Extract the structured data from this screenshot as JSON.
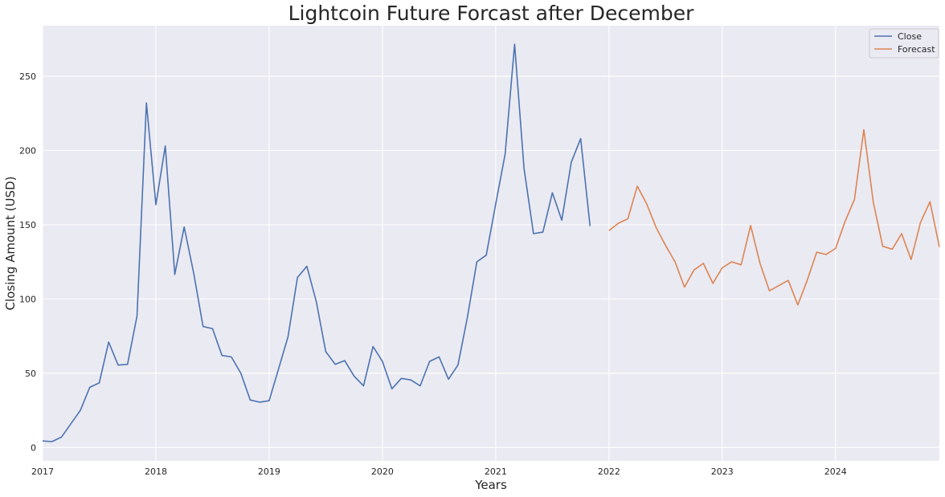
{
  "chart_data": {
    "type": "line",
    "title": "Lightcoin Future Forcast after December",
    "xlabel": "Years",
    "ylabel": "Closing Amount (USD)",
    "x_ticks": [
      "2017",
      "2018",
      "2019",
      "2020",
      "2021",
      "2022",
      "2023",
      "2024"
    ],
    "y_ticks": [
      "0",
      "50",
      "100",
      "150",
      "200",
      "250"
    ],
    "xlim": [
      "2017-01",
      "2024-12"
    ],
    "ylim": [
      -9,
      284
    ],
    "grid": true,
    "legend_position": "top-right",
    "background_color": "#eaeaf2",
    "series": [
      {
        "name": "Close",
        "color": "#4c72b0",
        "start": "2017-01",
        "values": [
          4.4,
          4.0,
          7.0,
          16.0,
          25.0,
          40.5,
          43.5,
          71.0,
          55.5,
          56.0,
          88.5,
          232.0,
          163.5,
          203.0,
          116.5,
          148.5,
          117.5,
          81.5,
          80.0,
          62.0,
          61.0,
          50.0,
          32.0,
          30.5,
          31.5,
          53.0,
          74.5,
          114.5,
          122.0,
          98.0,
          64.5,
          56.0,
          58.5,
          48.0,
          41.5,
          68.0,
          58.0,
          39.5,
          46.5,
          45.5,
          41.5,
          58.0,
          61.0,
          46.0,
          55.5,
          87.5,
          125.0,
          129.5,
          164.0,
          197.5,
          271.5,
          188.0,
          144.0,
          145.0,
          171.5,
          153.0,
          192.0,
          208.0,
          149.0
        ]
      },
      {
        "name": "Forecast",
        "color": "#dd8452",
        "start": "2022-01",
        "values": [
          146.0,
          151.0,
          154.0,
          176.0,
          164.0,
          148.0,
          136.0,
          125.0,
          108.0,
          119.5,
          124.0,
          110.5,
          121.0,
          125.0,
          123.0,
          149.5,
          124.0,
          105.5,
          109.0,
          112.5,
          96.0,
          112.5,
          131.5,
          130.0,
          134.0,
          152.0,
          167.0,
          214.0,
          165.0,
          135.5,
          133.5,
          144.0,
          126.5,
          151.5,
          165.5,
          135.0
        ]
      }
    ]
  }
}
